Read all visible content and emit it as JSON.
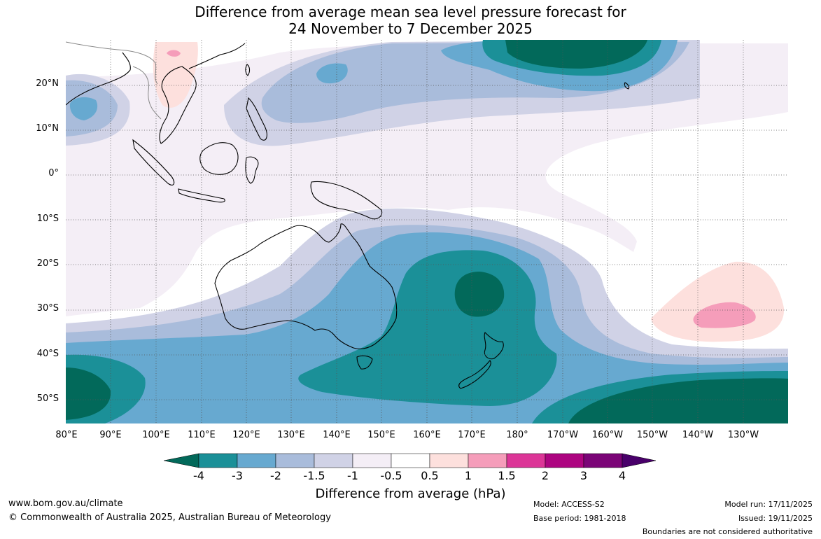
{
  "title": {
    "line1": "Difference from average mean sea level pressure forecast for",
    "line2": "24 November to 7 December 2025"
  },
  "axes": {
    "latitude_labels": [
      "20°N",
      "10°N",
      "0°",
      "10°S",
      "20°S",
      "30°S",
      "40°S",
      "50°S"
    ],
    "longitude_labels": [
      "80°E",
      "90°E",
      "100°E",
      "110°E",
      "120°E",
      "130°E",
      "140°E",
      "150°E",
      "160°E",
      "170°E",
      "180°",
      "170°W",
      "160°W",
      "150°W",
      "140°W",
      "130°W"
    ]
  },
  "colorbar": {
    "labels": [
      "-4",
      "-3",
      "-2",
      "-1.5",
      "-1",
      "-0.5",
      "0.5",
      "1",
      "1.5",
      "2",
      "3",
      "4"
    ],
    "colors": [
      "#02695a",
      "#1b9098",
      "#67a9d0",
      "#a9bcdb",
      "#d0d2e6",
      "#f4eef6",
      "#ffffff",
      "#fde0dd",
      "#f59dba",
      "#dc3597",
      "#ad0480",
      "#7b0477",
      "#49006a"
    ],
    "title": "Difference from average (hPa)"
  },
  "footer": {
    "url": "www.bom.gov.au/climate",
    "copyright": "© Commonwealth of Australia 2025, Australian Bureau of Meteorology",
    "model": "Model: ACCESS-S2",
    "base_period": "Base period: 1981-2018",
    "model_run": "Model run: 17/11/2025",
    "issued": "Issued: 19/11/2025",
    "disclaimer": "Boundaries are not considered authoritative"
  }
}
